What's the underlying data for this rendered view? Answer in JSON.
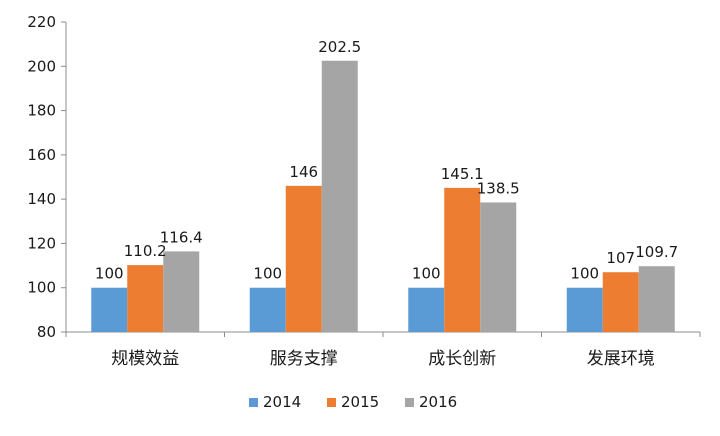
{
  "chart_data": {
    "type": "bar",
    "title": "",
    "xlabel": "",
    "ylabel": "",
    "categories": [
      "规模效益",
      "服务支撑",
      "成长创新",
      "发展环境"
    ],
    "series": [
      {
        "name": "2014",
        "color": "#5b9bd5",
        "values": [
          100,
          100,
          100,
          100
        ],
        "labels": [
          "100",
          "100",
          "100",
          "100"
        ]
      },
      {
        "name": "2015",
        "color": "#ed7d31",
        "values": [
          110.2,
          146,
          145.1,
          107
        ],
        "labels": [
          "110.2",
          "146",
          "145.1",
          "107"
        ]
      },
      {
        "name": "2016",
        "color": "#a5a5a5",
        "values": [
          116.4,
          202.5,
          138.5,
          109.7
        ],
        "labels": [
          "116.4",
          "202.5",
          "138.5",
          "109.7"
        ]
      }
    ],
    "ylim": [
      80,
      220
    ],
    "yticks": [
      80,
      100,
      120,
      140,
      160,
      180,
      200,
      220
    ],
    "ytick_labels": [
      "80",
      "100",
      "120",
      "140",
      "160",
      "180",
      "200",
      "220"
    ],
    "grid": false,
    "legend_position": "bottom"
  }
}
